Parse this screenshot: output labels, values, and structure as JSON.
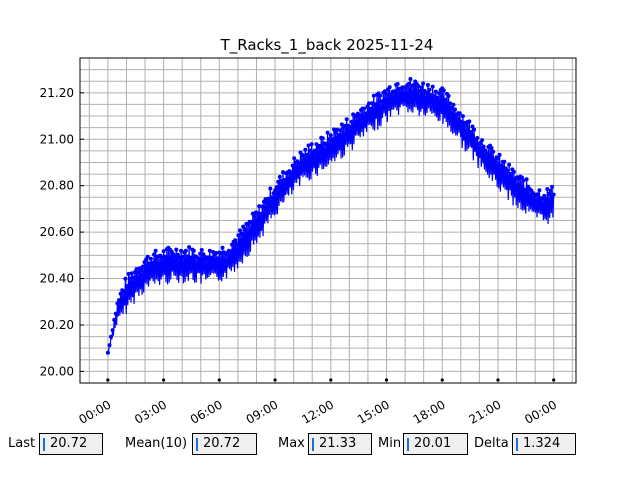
{
  "chart_data": {
    "type": "line",
    "title": "T_Racks_1_back 2025-11-24",
    "xlabel": "",
    "ylabel": "",
    "x_tick_labels": [
      "00:00",
      "03:00",
      "06:00",
      "09:00",
      "12:00",
      "15:00",
      "18:00",
      "21:00",
      "00:00"
    ],
    "x_range_hours": [
      -1.5,
      25.2
    ],
    "y_tick_labels": [
      "20.00",
      "20.20",
      "20.40",
      "20.60",
      "20.80",
      "21.00",
      "21.20"
    ],
    "ylim": [
      19.95,
      21.35
    ],
    "grid": true,
    "series_color": "#0000ff",
    "series": [
      {
        "x_hours": [
          0.0,
          0.5,
          1.0,
          1.5,
          2.0,
          2.5,
          3.0,
          3.5,
          4.0,
          4.5,
          5.0,
          5.5,
          6.0,
          6.5,
          7.0,
          7.5,
          8.0,
          8.5,
          9.0,
          9.5,
          10.0,
          10.5,
          11.0,
          11.5,
          12.0,
          12.5,
          13.0,
          13.5,
          14.0,
          14.5,
          15.0,
          15.5,
          16.0,
          16.5,
          17.0,
          17.5,
          18.0,
          18.5,
          19.0,
          19.5,
          20.0,
          20.5,
          21.0,
          21.5,
          22.0,
          22.5,
          23.0,
          23.5,
          24.0
        ],
        "values": [
          20.08,
          20.25,
          20.33,
          20.38,
          20.42,
          20.44,
          20.45,
          20.46,
          20.46,
          20.46,
          20.45,
          20.45,
          20.46,
          20.48,
          20.52,
          20.57,
          20.62,
          20.68,
          20.74,
          20.79,
          20.84,
          20.88,
          20.91,
          20.93,
          20.96,
          20.99,
          21.02,
          21.06,
          21.09,
          21.12,
          21.15,
          21.18,
          21.19,
          21.18,
          21.17,
          21.16,
          21.14,
          21.1,
          21.05,
          21.0,
          20.95,
          20.9,
          20.86,
          20.82,
          20.78,
          20.75,
          20.72,
          20.71,
          20.72
        ]
      }
    ],
    "noise_amplitude": 0.09
  },
  "stats": {
    "last_label": "Last",
    "last_value": "20.72",
    "mean_label": "Mean(10)",
    "mean_value": "20.72",
    "max_label": "Max",
    "max_value": "21.33",
    "min_label": "Min",
    "min_value": "20.01",
    "delta_label": "Delta",
    "delta_value": "1.324"
  }
}
